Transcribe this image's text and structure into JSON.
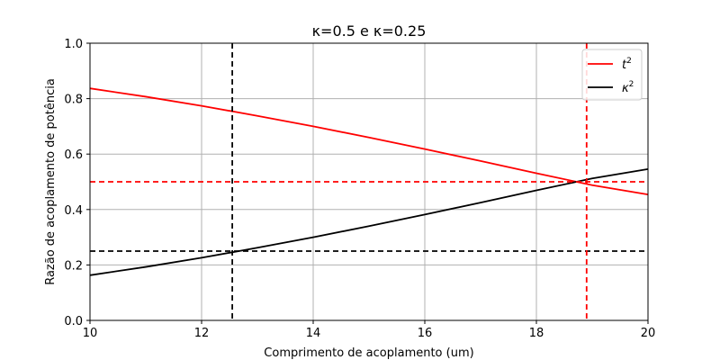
{
  "chart_data": {
    "type": "line",
    "title": "κ=0.5 e κ=0.25",
    "xlabel": "Comprimento de acoplamento (um)",
    "ylabel": "Razão de acoplamento de potência",
    "xlim": [
      10,
      20
    ],
    "ylim": [
      0,
      1.0
    ],
    "x_ticks": [
      10,
      12,
      14,
      16,
      18,
      20
    ],
    "y_ticks": [
      0.0,
      0.2,
      0.4,
      0.6,
      0.8,
      1.0
    ],
    "x_tick_labels": [
      "10",
      "12",
      "14",
      "16",
      "18",
      "20"
    ],
    "y_tick_labels": [
      "0.0",
      "0.2",
      "0.4",
      "0.6",
      "0.8",
      "1.0"
    ],
    "grid": true,
    "legend_position": "top-right",
    "series": [
      {
        "name": "t²",
        "legend_base": "t",
        "legend_sup": "2",
        "color": "#ff0000",
        "x": [
          10,
          11,
          12,
          13,
          14,
          15,
          16,
          17,
          18,
          19,
          20
        ],
        "values": [
          0.837,
          0.807,
          0.774,
          0.738,
          0.7,
          0.66,
          0.618,
          0.575,
          0.531,
          0.488,
          0.454
        ]
      },
      {
        "name": "κ²",
        "legend_base": "κ",
        "legend_sup": "2",
        "color": "#000000",
        "x": [
          10,
          11,
          12,
          13,
          14,
          15,
          16,
          17,
          18,
          19,
          20
        ],
        "values": [
          0.163,
          0.193,
          0.226,
          0.262,
          0.3,
          0.34,
          0.382,
          0.425,
          0.469,
          0.512,
          0.546
        ]
      }
    ],
    "reference_lines": [
      {
        "orientation": "vertical",
        "value": 12.55,
        "color": "#000000"
      },
      {
        "orientation": "horizontal",
        "value": 0.25,
        "color": "#000000"
      },
      {
        "orientation": "vertical",
        "value": 18.9,
        "color": "#ff0000"
      },
      {
        "orientation": "horizontal",
        "value": 0.5,
        "color": "#ff0000"
      }
    ]
  }
}
